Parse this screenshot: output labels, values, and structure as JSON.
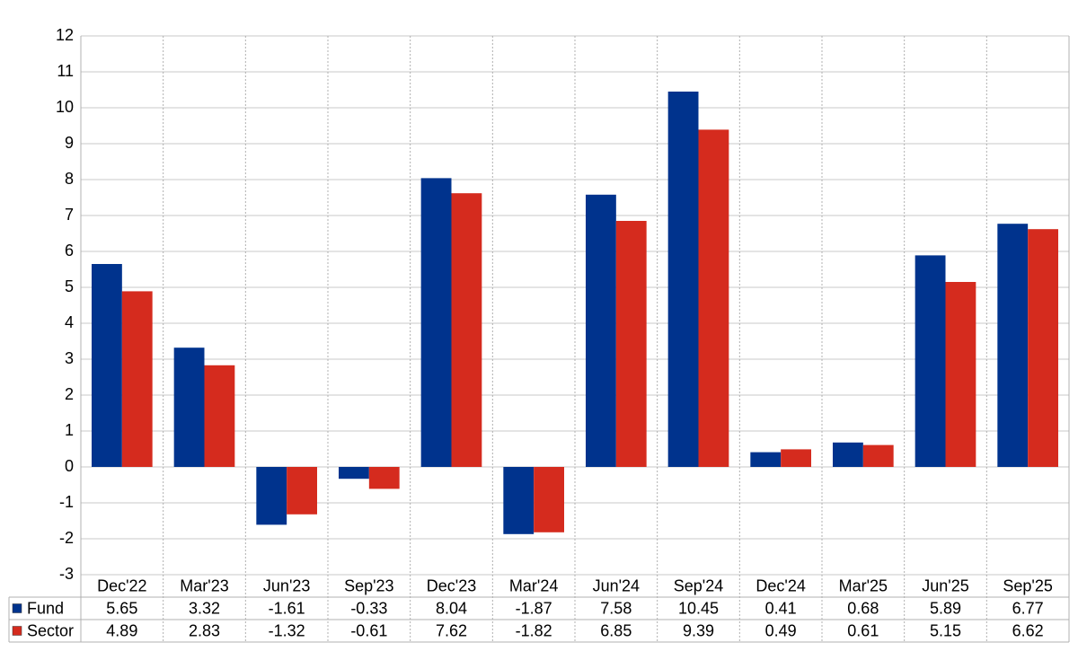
{
  "chart_data": {
    "type": "bar",
    "categories": [
      "Dec'22",
      "Mar'23",
      "Jun'23",
      "Sep'23",
      "Dec'23",
      "Mar'24",
      "Jun'24",
      "Sep'24",
      "Dec'24",
      "Mar'25",
      "Jun'25",
      "Sep'25"
    ],
    "series": [
      {
        "name": "Fund",
        "color": "#00338d",
        "values": [
          5.65,
          3.32,
          -1.61,
          -0.33,
          8.04,
          -1.87,
          7.58,
          10.45,
          0.41,
          0.68,
          5.89,
          6.77
        ]
      },
      {
        "name": "Sector",
        "color": "#d52b1e",
        "values": [
          4.89,
          2.83,
          -1.32,
          -0.61,
          7.62,
          -1.82,
          6.85,
          9.39,
          0.49,
          0.61,
          5.15,
          6.62
        ]
      }
    ],
    "ylim": [
      -3,
      12
    ],
    "yticks": [
      -3,
      -2,
      -1,
      0,
      1,
      2,
      3,
      4,
      5,
      6,
      7,
      8,
      9,
      10,
      11,
      12
    ],
    "grid": true,
    "negative_color": "#e00000"
  }
}
